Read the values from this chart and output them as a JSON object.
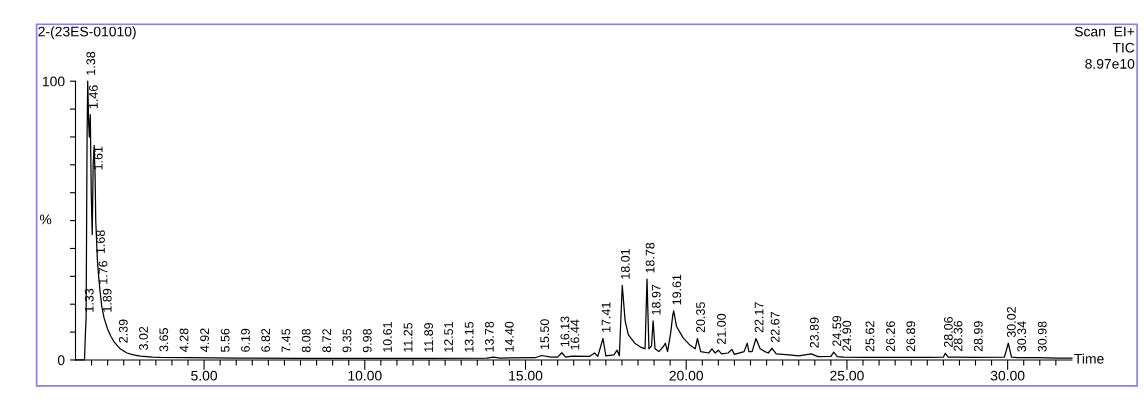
{
  "chart_data": {
    "type": "line",
    "title": "2-(23ES-01010)",
    "xlabel": "Time",
    "ylabel": "%",
    "series": [
      {
        "color": "#000000",
        "x": [
          1.0,
          1.28,
          1.31,
          1.33,
          1.36,
          1.38,
          1.41,
          1.43,
          1.46,
          1.49,
          1.52,
          1.55,
          1.58,
          1.61,
          1.63,
          1.68,
          1.72,
          1.76,
          1.82,
          1.89,
          2.0,
          2.1,
          2.2,
          2.39,
          2.6,
          2.8,
          3.02,
          3.4,
          3.65,
          4.5,
          6,
          8,
          10,
          12,
          13.8,
          14.0,
          14.2,
          15.3,
          15.5,
          15.8,
          16.0,
          16.13,
          16.25,
          16.44,
          17.0,
          17.15,
          17.25,
          17.41,
          17.5,
          17.75,
          17.85,
          17.92,
          18.01,
          18.1,
          18.2,
          18.4,
          18.6,
          18.72,
          18.78,
          18.84,
          18.92,
          18.97,
          19.03,
          19.15,
          19.3,
          19.35,
          19.42,
          19.52,
          19.58,
          19.61,
          19.7,
          19.9,
          20.1,
          20.28,
          20.35,
          20.45,
          20.7,
          20.8,
          20.9,
          21.0,
          21.1,
          21.3,
          21.42,
          21.5,
          21.8,
          21.9,
          21.95,
          22.05,
          22.17,
          22.3,
          22.45,
          22.55,
          22.67,
          22.8,
          23.2,
          23.5,
          23.89,
          24.1,
          24.5,
          24.59,
          24.7,
          24.9,
          25.62,
          26.26,
          26.89,
          27.5,
          28.0,
          28.06,
          28.15,
          28.36,
          28.99,
          29.9,
          30.02,
          30.12,
          30.34,
          30.98,
          31.5,
          32.0
        ],
        "values": [
          0,
          0,
          10,
          15,
          80,
          100,
          85,
          80,
          88,
          60,
          45,
          70,
          77,
          66,
          50,
          36,
          30,
          25,
          19,
          15,
          11,
          8.5,
          6.5,
          4,
          2.5,
          1.8,
          1.4,
          1.0,
          0.9,
          0.8,
          0.7,
          0.6,
          0.6,
          0.6,
          0.7,
          1.0,
          0.7,
          0.8,
          1.6,
          1.0,
          1.0,
          2.6,
          1.0,
          1.4,
          1.3,
          2.5,
          1.3,
          7.7,
          1.5,
          1.8,
          3.5,
          1.5,
          26.8,
          14,
          9,
          6,
          4.5,
          4,
          29,
          4,
          5,
          14,
          4,
          3,
          5,
          6,
          3,
          10,
          16,
          17.6,
          12,
          8,
          5.5,
          4,
          7.7,
          3,
          2.5,
          4,
          2.5,
          3.5,
          2.2,
          2.5,
          3.8,
          2.0,
          3,
          6,
          3,
          3,
          7.7,
          4,
          3,
          2.5,
          4.2,
          2.2,
          1.8,
          1.5,
          2.2,
          1.2,
          1.3,
          2.8,
          1.2,
          1.0,
          0.9,
          0.9,
          0.9,
          0.9,
          1,
          2.4,
          1,
          1,
          0.9,
          1,
          6,
          1,
          0.8,
          0.8,
          0.7,
          0.7
        ]
      }
    ],
    "xlim": [
      1,
      32
    ],
    "ylim": [
      0,
      100
    ],
    "xticks": [
      {
        "value": 1.5,
        "label": null
      },
      {
        "value": 2,
        "label": null
      },
      {
        "value": 2.5,
        "label": null
      },
      {
        "value": 3,
        "label": null
      },
      {
        "value": 3.5,
        "label": null
      },
      {
        "value": 4,
        "label": null
      },
      {
        "value": 4.5,
        "label": null
      },
      {
        "value": 5,
        "label": "5.00"
      },
      {
        "value": 5.5,
        "label": null
      },
      {
        "value": 6,
        "label": null
      },
      {
        "value": 6.5,
        "label": null
      },
      {
        "value": 7,
        "label": null
      },
      {
        "value": 7.5,
        "label": null
      },
      {
        "value": 8,
        "label": null
      },
      {
        "value": 8.5,
        "label": null
      },
      {
        "value": 9,
        "label": null
      },
      {
        "value": 9.5,
        "label": null
      },
      {
        "value": 10,
        "label": "10.00"
      },
      {
        "value": 10.5,
        "label": null
      },
      {
        "value": 11,
        "label": null
      },
      {
        "value": 11.5,
        "label": null
      },
      {
        "value": 12,
        "label": null
      },
      {
        "value": 12.5,
        "label": null
      },
      {
        "value": 13,
        "label": null
      },
      {
        "value": 13.5,
        "label": null
      },
      {
        "value": 14,
        "label": null
      },
      {
        "value": 14.5,
        "label": null
      },
      {
        "value": 15,
        "label": "15.00"
      },
      {
        "value": 15.5,
        "label": null
      },
      {
        "value": 16,
        "label": null
      },
      {
        "value": 16.5,
        "label": null
      },
      {
        "value": 17,
        "label": null
      },
      {
        "value": 17.5,
        "label": null
      },
      {
        "value": 18,
        "label": null
      },
      {
        "value": 18.5,
        "label": null
      },
      {
        "value": 19,
        "label": null
      },
      {
        "value": 19.5,
        "label": null
      },
      {
        "value": 20,
        "label": "20.00"
      },
      {
        "value": 20.5,
        "label": null
      },
      {
        "value": 21,
        "label": null
      },
      {
        "value": 21.5,
        "label": null
      },
      {
        "value": 22,
        "label": null
      },
      {
        "value": 22.5,
        "label": null
      },
      {
        "value": 23,
        "label": null
      },
      {
        "value": 23.5,
        "label": null
      },
      {
        "value": 24,
        "label": null
      },
      {
        "value": 24.5,
        "label": null
      },
      {
        "value": 25,
        "label": "25.00"
      },
      {
        "value": 25.5,
        "label": null
      },
      {
        "value": 26,
        "label": null
      },
      {
        "value": 26.5,
        "label": null
      },
      {
        "value": 27,
        "label": null
      },
      {
        "value": 27.5,
        "label": null
      },
      {
        "value": 28,
        "label": null
      },
      {
        "value": 28.5,
        "label": null
      },
      {
        "value": 29,
        "label": null
      },
      {
        "value": 29.5,
        "label": null
      },
      {
        "value": 30,
        "label": "30.00"
      },
      {
        "value": 30.5,
        "label": null
      },
      {
        "value": 31,
        "label": null
      },
      {
        "value": 31.5,
        "label": null
      }
    ],
    "yticks": [
      0,
      {
        "value": 10,
        "label": null
      },
      {
        "value": 20,
        "label": null
      },
      {
        "value": 30,
        "label": null
      },
      {
        "value": 40,
        "label": null
      },
      {
        "value": 50,
        "label": null
      },
      {
        "value": 60,
        "label": null
      },
      {
        "value": 70,
        "label": null
      },
      {
        "value": 80,
        "label": null
      },
      {
        "value": 90,
        "label": null
      },
      100
    ],
    "grid": false,
    "legend": false,
    "marker": "none",
    "line_style": "solid",
    "annotations": [
      "Scan  EI+",
      "TIC",
      "8.97e10",
      {
        "text": "1.33",
        "x": 1.33,
        "y": 15
      },
      {
        "text": "1.38",
        "x": 1.38,
        "y": 100
      },
      {
        "text": "1.46",
        "x": 1.46,
        "y": 88
      },
      {
        "text": "1.61",
        "x": 1.61,
        "y": 66
      },
      {
        "text": "1.68",
        "x": 1.68,
        "y": 36
      },
      {
        "text": "1.76",
        "x": 1.76,
        "y": 25
      },
      {
        "text": "1.89",
        "x": 1.89,
        "y": 15
      },
      {
        "text": "2.39",
        "x": 2.39,
        "y": 4
      },
      {
        "text": "3.02",
        "x": 3.02,
        "y": 1.4
      },
      {
        "text": "3.65",
        "x": 3.65,
        "y": 0.9
      },
      {
        "text": "4.28",
        "x": 4.28,
        "y": 0.8
      },
      {
        "text": "4.92",
        "x": 4.92,
        "y": 0.8
      },
      {
        "text": "5.56",
        "x": 5.56,
        "y": 0.7
      },
      {
        "text": "6.19",
        "x": 6.19,
        "y": 0.7
      },
      {
        "text": "6.82",
        "x": 6.82,
        "y": 0.7
      },
      {
        "text": "7.45",
        "x": 7.45,
        "y": 0.6
      },
      {
        "text": "8.08",
        "x": 8.08,
        "y": 0.6
      },
      {
        "text": "8.72",
        "x": 8.72,
        "y": 0.6
      },
      {
        "text": "9.35",
        "x": 9.35,
        "y": 0.6
      },
      {
        "text": "9.98",
        "x": 9.98,
        "y": 0.6
      },
      {
        "text": "10.61",
        "x": 10.61,
        "y": 0.6
      },
      {
        "text": "11.25",
        "x": 11.25,
        "y": 0.6
      },
      {
        "text": "11.89",
        "x": 11.89,
        "y": 0.6
      },
      {
        "text": "12.51",
        "x": 12.51,
        "y": 0.6
      },
      {
        "text": "13.15",
        "x": 13.15,
        "y": 0.6
      },
      {
        "text": "13.78",
        "x": 13.78,
        "y": 0.7
      },
      {
        "text": "14.40",
        "x": 14.4,
        "y": 0.7
      },
      {
        "text": "15.50",
        "x": 15.5,
        "y": 1.6
      },
      {
        "text": "16.13",
        "x": 16.13,
        "y": 2.6
      },
      {
        "text": "16.44",
        "x": 16.44,
        "y": 1.4
      },
      {
        "text": "17.41",
        "x": 17.41,
        "y": 7.7
      },
      {
        "text": "18.01",
        "x": 18.01,
        "y": 26.8
      },
      {
        "text": "18.78",
        "x": 18.78,
        "y": 29
      },
      {
        "text": "18.97",
        "x": 18.97,
        "y": 14
      },
      {
        "text": "19.61",
        "x": 19.61,
        "y": 17.6
      },
      {
        "text": "20.35",
        "x": 20.35,
        "y": 7.7
      },
      {
        "text": "21.00",
        "x": 21.0,
        "y": 3.5
      },
      {
        "text": "22.17",
        "x": 22.17,
        "y": 7.7
      },
      {
        "text": "22.67",
        "x": 22.67,
        "y": 4.2
      },
      {
        "text": "23.89",
        "x": 23.89,
        "y": 2.2
      },
      {
        "text": "24.59",
        "x": 24.59,
        "y": 2.8
      },
      {
        "text": "24.90",
        "x": 24.9,
        "y": 1.0
      },
      {
        "text": "25.62",
        "x": 25.62,
        "y": 0.9
      },
      {
        "text": "26.26",
        "x": 26.26,
        "y": 0.9
      },
      {
        "text": "26.89",
        "x": 26.89,
        "y": 0.9
      },
      {
        "text": "28.06",
        "x": 28.06,
        "y": 2.4
      },
      {
        "text": "28.36",
        "x": 28.36,
        "y": 1
      },
      {
        "text": "28.99",
        "x": 28.99,
        "y": 0.9
      },
      {
        "text": "30.02",
        "x": 30.02,
        "y": 6
      },
      {
        "text": "30.34",
        "x": 30.34,
        "y": 0.8
      },
      {
        "text": "30.98",
        "x": 30.98,
        "y": 0.8
      }
    ]
  }
}
